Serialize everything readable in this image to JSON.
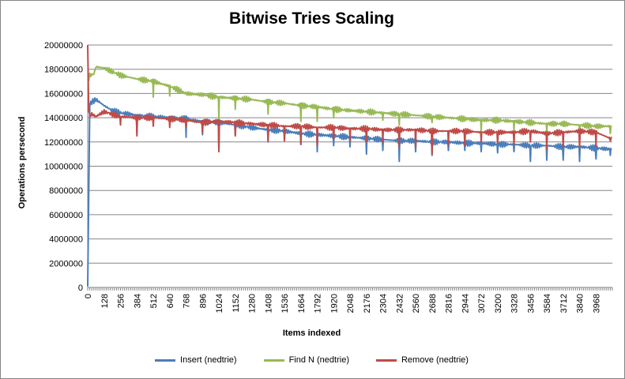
{
  "chart_data": {
    "type": "line",
    "title": "Bitwise Tries Scaling",
    "xlabel": "Items indexed",
    "ylabel": "Operations persecond",
    "ylim": [
      0,
      20000000
    ],
    "xlim": [
      0,
      4096
    ],
    "y_ticks": [
      "0",
      "2000000",
      "4000000",
      "6000000",
      "8000000",
      "10000000",
      "12000000",
      "14000000",
      "16000000",
      "18000000",
      "20000000"
    ],
    "x_ticks": [
      "0",
      "128",
      "256",
      "384",
      "512",
      "640",
      "768",
      "896",
      "1024",
      "1152",
      "1280",
      "1408",
      "1536",
      "1664",
      "1792",
      "1920",
      "2048",
      "2176",
      "2304",
      "2432",
      "2560",
      "2688",
      "2816",
      "2944",
      "3072",
      "3200",
      "3328",
      "3456",
      "3584",
      "3712",
      "3840",
      "3968"
    ],
    "grid": "horizontal",
    "legend_position": "bottom",
    "series": [
      {
        "name": "Insert (nedtrie)",
        "color": "#4a7ebb",
        "x": [
          0,
          16,
          32,
          64,
          128,
          192,
          256,
          384,
          512,
          640,
          768,
          896,
          1024,
          1152,
          1280,
          1408,
          1536,
          1664,
          1792,
          1920,
          2048,
          2176,
          2304,
          2432,
          2560,
          2688,
          2816,
          2944,
          3072,
          3200,
          3328,
          3456,
          3584,
          3712,
          3840,
          3968,
          4080
        ],
        "y": [
          100000,
          15100000,
          15300000,
          15500000,
          15000000,
          14600000,
          14400000,
          14200000,
          14100000,
          14000000,
          13900000,
          13700000,
          13600000,
          13400000,
          13200000,
          13000000,
          12900000,
          12700000,
          12600000,
          12500000,
          12400000,
          12300000,
          12200000,
          12100000,
          12100000,
          12000000,
          12000000,
          11900000,
          11900000,
          11800000,
          11800000,
          11700000,
          11700000,
          11600000,
          11600000,
          11500000,
          11400000
        ],
        "dips": [
          [
            384,
            12700000
          ],
          [
            768,
            12400000
          ],
          [
            896,
            12600000
          ],
          [
            1024,
            11300000
          ],
          [
            1152,
            12600000
          ],
          [
            1408,
            12000000
          ],
          [
            1536,
            12100000
          ],
          [
            1664,
            11800000
          ],
          [
            1792,
            11200000
          ],
          [
            1920,
            11700000
          ],
          [
            2048,
            11600000
          ],
          [
            2176,
            11000000
          ],
          [
            2304,
            11300000
          ],
          [
            2432,
            10400000
          ],
          [
            2560,
            11200000
          ],
          [
            2688,
            10900000
          ],
          [
            2816,
            11300000
          ],
          [
            2944,
            11300000
          ],
          [
            3072,
            11200000
          ],
          [
            3200,
            11100000
          ],
          [
            3328,
            11200000
          ],
          [
            3456,
            10400000
          ],
          [
            3584,
            10500000
          ],
          [
            3712,
            10500000
          ],
          [
            3840,
            10400000
          ],
          [
            3968,
            10600000
          ],
          [
            4080,
            10900000
          ]
        ]
      },
      {
        "name": "Find N (nedtrie)",
        "color": "#98b954",
        "x": [
          0,
          16,
          48,
          64,
          128,
          192,
          256,
          384,
          512,
          640,
          768,
          896,
          1024,
          1152,
          1280,
          1408,
          1536,
          1664,
          1792,
          1920,
          2048,
          2176,
          2304,
          2432,
          2560,
          2688,
          2816,
          2944,
          3072,
          3200,
          3328,
          3456,
          3584,
          3712,
          3840,
          3968,
          4080
        ],
        "y": [
          17000000,
          17500000,
          17600000,
          18200000,
          18100000,
          17800000,
          17500000,
          17200000,
          17000000,
          16600000,
          16000000,
          15900000,
          15700000,
          15600000,
          15500000,
          15300000,
          15200000,
          15000000,
          14900000,
          14700000,
          14600000,
          14500000,
          14400000,
          14300000,
          14200000,
          14100000,
          14000000,
          13900000,
          13800000,
          13800000,
          13700000,
          13600000,
          13500000,
          13500000,
          13400000,
          13300000,
          13300000
        ],
        "dips": [
          [
            512,
            15700000
          ],
          [
            640,
            15800000
          ],
          [
            1024,
            13900000
          ],
          [
            1152,
            14700000
          ],
          [
            1408,
            14300000
          ],
          [
            1664,
            13700000
          ],
          [
            1792,
            13700000
          ],
          [
            1920,
            14000000
          ],
          [
            2304,
            13800000
          ],
          [
            2432,
            13400000
          ],
          [
            2688,
            13600000
          ],
          [
            3072,
            12900000
          ],
          [
            3328,
            12900000
          ],
          [
            3584,
            12800000
          ],
          [
            3840,
            12700000
          ],
          [
            4080,
            12700000
          ]
        ]
      },
      {
        "name": "Remove (nedtrie)",
        "color": "#be4b48",
        "x": [
          0,
          4,
          16,
          32,
          64,
          128,
          192,
          256,
          384,
          512,
          640,
          768,
          896,
          1024,
          1152,
          1280,
          1408,
          1536,
          1664,
          1792,
          1920,
          2048,
          2176,
          2304,
          2432,
          2560,
          2688,
          2816,
          2944,
          3072,
          3200,
          3328,
          3456,
          3584,
          3712,
          3840,
          3968,
          4080
        ],
        "y": [
          20000000,
          14800000,
          14200000,
          14300000,
          14100000,
          14500000,
          14300000,
          14100000,
          14000000,
          14000000,
          13900000,
          13800000,
          13600000,
          13700000,
          13600000,
          13500000,
          13400000,
          13300000,
          13300000,
          13200000,
          13200000,
          13100000,
          13100000,
          13000000,
          13000000,
          13000000,
          12900000,
          12900000,
          12900000,
          12800000,
          12800000,
          12800000,
          12900000,
          12700000,
          12800000,
          12900000,
          12800000,
          12300000
        ],
        "dips": [
          [
            256,
            13400000
          ],
          [
            384,
            12500000
          ],
          [
            512,
            13300000
          ],
          [
            640,
            13200000
          ],
          [
            768,
            13200000
          ],
          [
            896,
            12800000
          ],
          [
            1024,
            11200000
          ],
          [
            1152,
            12500000
          ],
          [
            1408,
            12100000
          ],
          [
            1536,
            12100000
          ],
          [
            1664,
            11800000
          ],
          [
            1792,
            11700000
          ],
          [
            1920,
            12200000
          ],
          [
            2048,
            12100000
          ],
          [
            2176,
            12000000
          ],
          [
            2304,
            12000000
          ],
          [
            2432,
            11600000
          ],
          [
            2560,
            11600000
          ],
          [
            2688,
            11000000
          ],
          [
            2816,
            11800000
          ],
          [
            2944,
            11700000
          ],
          [
            3072,
            12000000
          ],
          [
            3200,
            11900000
          ],
          [
            3328,
            11800000
          ],
          [
            3456,
            12000000
          ],
          [
            3584,
            11400000
          ],
          [
            3712,
            11600000
          ],
          [
            3840,
            11500000
          ],
          [
            3968,
            11600000
          ],
          [
            4080,
            12100000
          ]
        ]
      }
    ]
  }
}
